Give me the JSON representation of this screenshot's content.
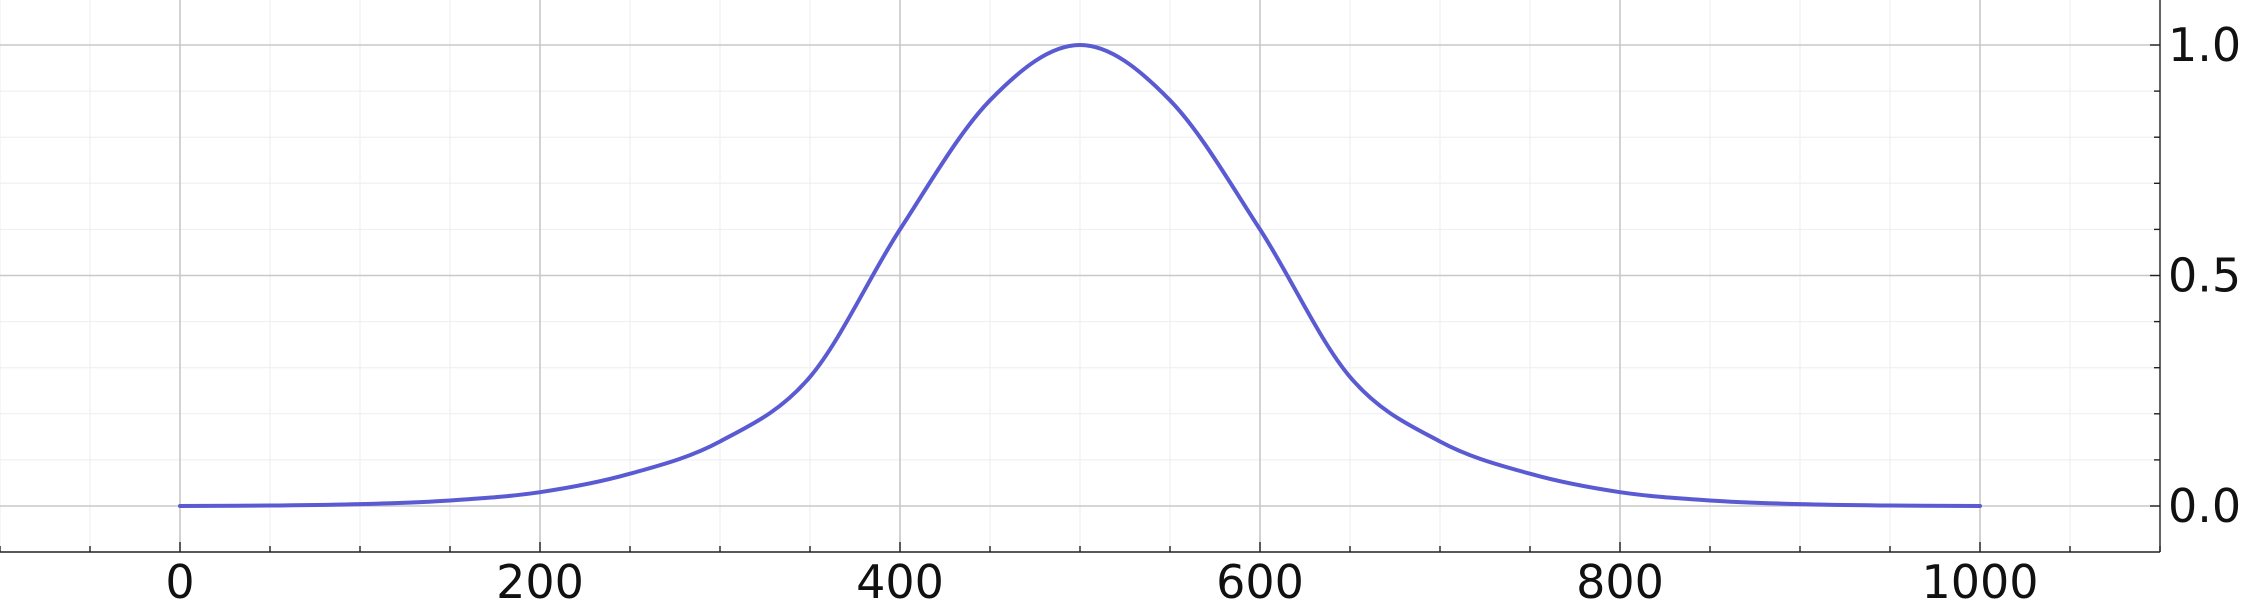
{
  "chart_data": {
    "type": "line",
    "title": "",
    "xlabel": "",
    "ylabel": "",
    "grid": true,
    "legend": "none",
    "xlim": [
      -200,
      1100
    ],
    "ylim": [
      -0.1,
      1.1
    ],
    "x_ticks": [
      0,
      200,
      400,
      600,
      800,
      1000
    ],
    "x_tick_labels": [
      "0",
      "200",
      "400",
      "600",
      "800",
      "1000"
    ],
    "y_ticks": [
      0.0,
      0.5,
      1.0
    ],
    "y_tick_labels": [
      "0.0",
      "0.5",
      "1.0"
    ],
    "y_axis_side": "right",
    "series": [
      {
        "color": "#5a5ad2",
        "x": [
          0,
          50,
          100,
          150,
          200,
          250,
          300,
          350,
          400,
          450,
          500,
          550,
          600,
          650,
          700,
          750,
          800,
          850,
          900,
          950,
          1000
        ],
        "y": [
          0.0,
          0.001,
          0.004,
          0.012,
          0.03,
          0.07,
          0.14,
          0.28,
          0.6,
          0.88,
          1.0,
          0.88,
          0.6,
          0.28,
          0.14,
          0.07,
          0.03,
          0.012,
          0.004,
          0.001,
          0.0
        ]
      }
    ]
  }
}
